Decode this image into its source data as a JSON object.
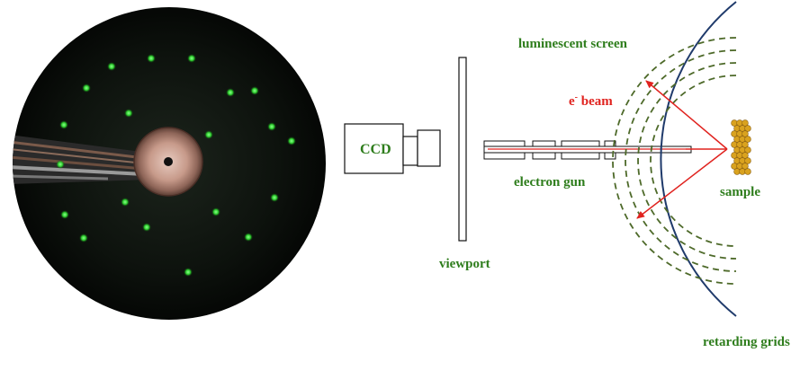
{
  "labels": {
    "ccd": "CCD",
    "viewport": "viewport",
    "luminescent_screen": "luminescent screen",
    "beam_prefix": "e",
    "beam_sup": "-",
    "beam_suffix": " beam",
    "electron_gun": "electron gun",
    "sample": "sample",
    "retarding_grids": "retarding grids"
  },
  "colors": {
    "label_green": "#2e7d1c",
    "beam_red": "#e0231f",
    "screen_blue": "#1f3a6b",
    "grid_green": "#4e6a2a",
    "sample_gold": "#d9a21f",
    "diffraction_spot": "#39d639"
  }
}
